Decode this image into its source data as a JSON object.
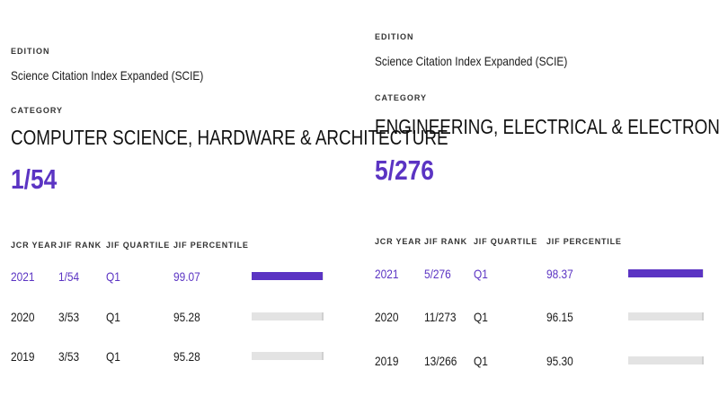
{
  "panels": [
    {
      "edition_label": "EDITION",
      "edition_value": "Science Citation Index Expanded (SCIE)",
      "category_label": "CATEGORY",
      "category_name": "COMPUTER SCIENCE, HARDWARE & ARCHITECTURE",
      "rank": "1/54",
      "columns": [
        "JCR YEAR",
        "JIF RANK",
        "JIF QUARTILE",
        "JIF PERCENTILE"
      ],
      "rows": [
        {
          "year": "2021",
          "rank": "1/54",
          "quartile": "Q1",
          "percentile": "99.07",
          "current": true
        },
        {
          "year": "2020",
          "rank": "3/53",
          "quartile": "Q1",
          "percentile": "95.28",
          "current": false
        },
        {
          "year": "2019",
          "rank": "3/53",
          "quartile": "Q1",
          "percentile": "95.28",
          "current": false
        }
      ]
    },
    {
      "edition_label": "EDITION",
      "edition_value": "Science Citation Index Expanded (SCIE)",
      "category_label": "CATEGORY",
      "category_name": "ENGINEERING, ELECTRICAL & ELECTRONIC",
      "rank": "5/276",
      "columns": [
        "JCR YEAR",
        "JIF RANK",
        "JIF QUARTILE",
        "JIF PERCENTILE"
      ],
      "rows": [
        {
          "year": "2021",
          "rank": "5/276",
          "quartile": "Q1",
          "percentile": "98.37",
          "current": true
        },
        {
          "year": "2020",
          "rank": "11/273",
          "quartile": "Q1",
          "percentile": "96.15",
          "current": false
        },
        {
          "year": "2019",
          "rank": "13/266",
          "quartile": "Q1",
          "percentile": "95.30",
          "current": false
        }
      ]
    }
  ],
  "colors": {
    "accent": "#5b34c3",
    "bar_track": "#e3e3e3"
  }
}
